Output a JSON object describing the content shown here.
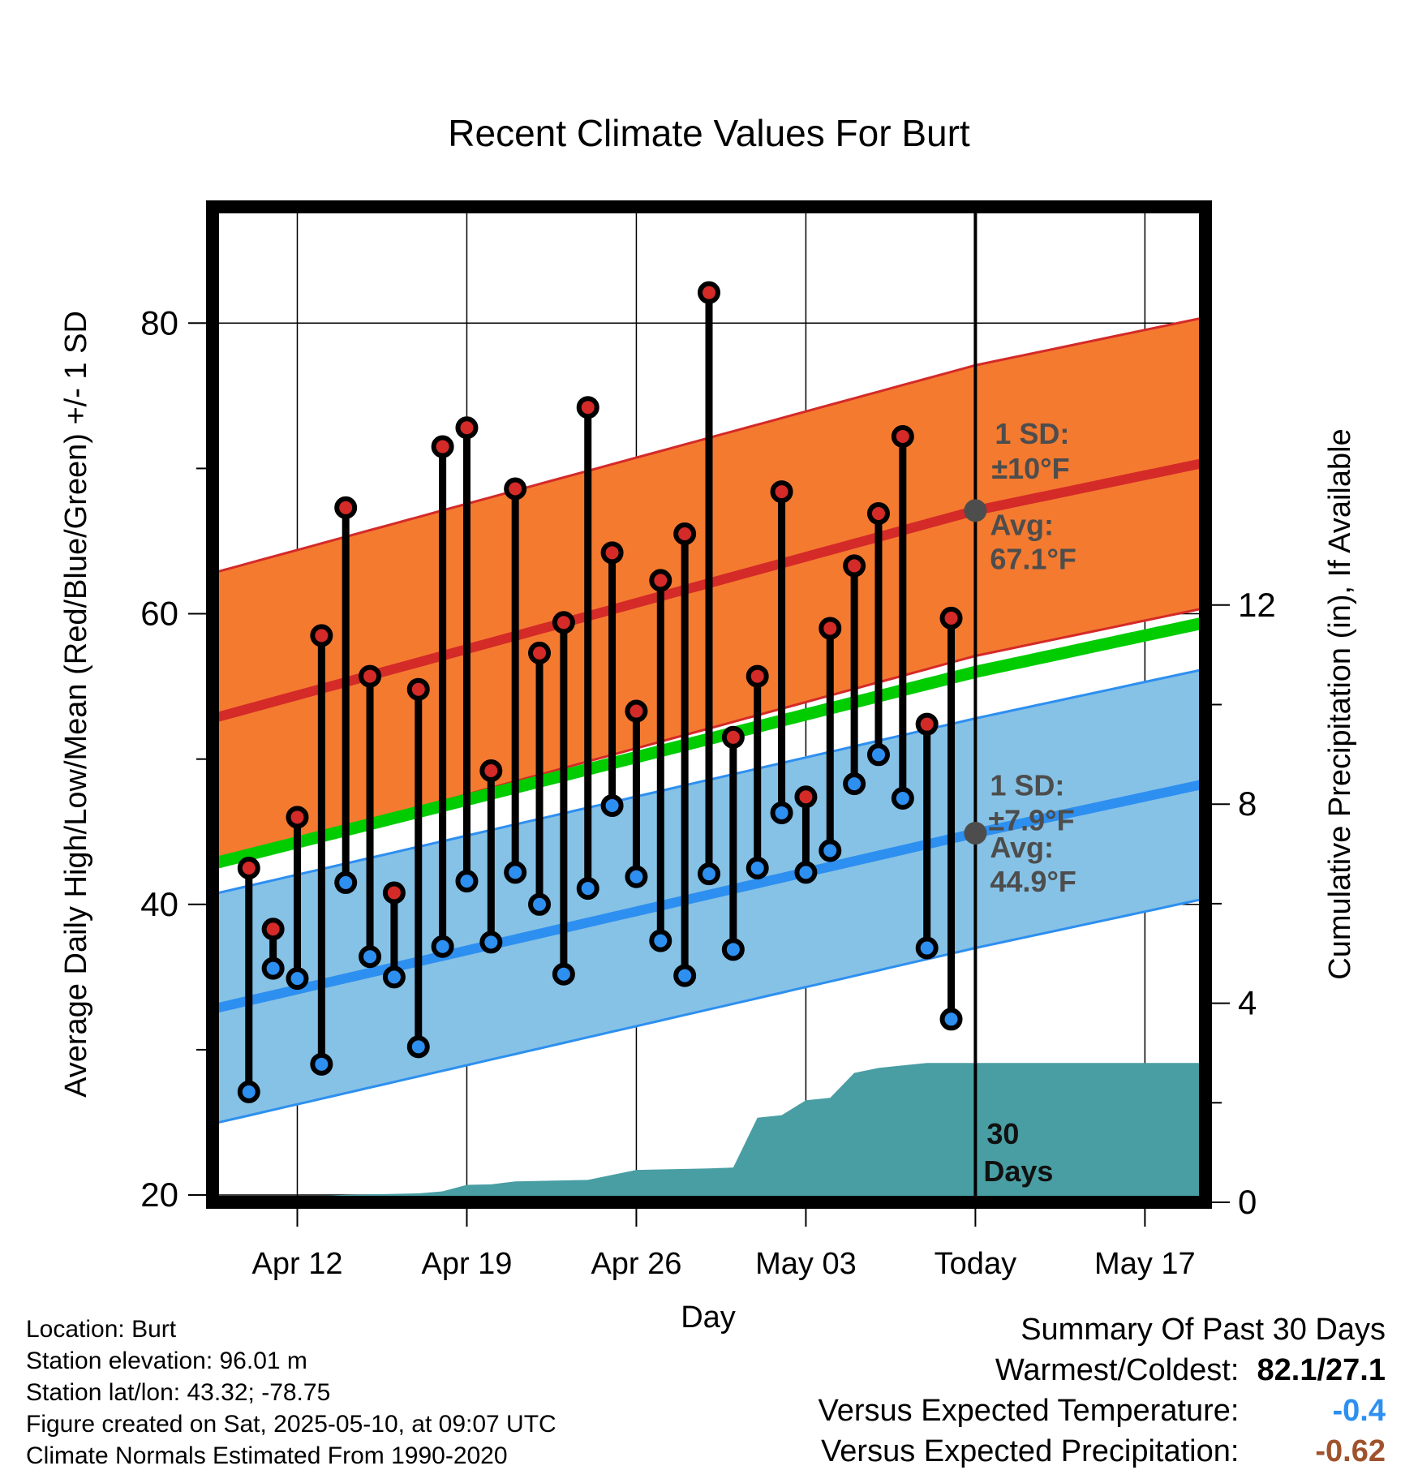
{
  "chart_data": {
    "type": "line",
    "title": "Recent Climate Values For Burt",
    "xlabel": "Day",
    "ylabel": "Average Daily High/Low/Mean (Red/Blue/Green) +/- 1 SD",
    "y2label": "Cumulative Precipitation (in), If Available",
    "ylim": [
      19.5,
      88
    ],
    "y2lim": [
      0,
      20
    ],
    "y_ticks": [
      "20",
      "40",
      "60",
      "80"
    ],
    "y2_ticks": [
      "0",
      "4",
      "8",
      "12"
    ],
    "x_range_days": [
      -31.5,
      9.5
    ],
    "x_ticks": [
      {
        "day": -28,
        "label": "Apr 12"
      },
      {
        "day": -21,
        "label": "Apr 19"
      },
      {
        "day": -14,
        "label": "Apr 26"
      },
      {
        "day": -7,
        "label": "May 03"
      },
      {
        "day": 0,
        "label": "Today"
      },
      {
        "day": 7,
        "label": "May 17"
      }
    ],
    "daily_observations": {
      "day": [
        -30,
        -29,
        -28,
        -27,
        -26,
        -25,
        -24,
        -23,
        -22,
        -21,
        -20,
        -19,
        -18,
        -17,
        -16,
        -15,
        -14,
        -13,
        -12,
        -11,
        -10,
        -9,
        -8,
        -7,
        -6,
        -5,
        -4,
        -3,
        -2,
        -1
      ],
      "high": [
        42.5,
        38.3,
        46.0,
        58.5,
        67.3,
        55.7,
        40.8,
        54.8,
        71.5,
        72.8,
        49.2,
        68.6,
        57.3,
        59.4,
        74.2,
        64.2,
        53.3,
        62.3,
        65.5,
        82.1,
        51.5,
        55.7,
        68.4,
        47.4,
        59.0,
        63.3,
        66.9,
        72.2,
        52.4,
        59.7
      ],
      "low": [
        27.1,
        35.6,
        34.9,
        29.0,
        41.5,
        36.4,
        35.0,
        30.2,
        37.1,
        41.6,
        37.4,
        42.2,
        40.0,
        35.2,
        41.1,
        46.8,
        41.9,
        37.5,
        35.1,
        42.1,
        36.9,
        42.5,
        46.3,
        42.2,
        43.7,
        48.3,
        50.3,
        47.3,
        37.0,
        32.1
      ]
    },
    "normals": {
      "day": [
        -31.5,
        0,
        9.5
      ],
      "avg_high": [
        52.8,
        67.1,
        70.4
      ],
      "avg_high_sd": 10,
      "avg_low": [
        32.8,
        44.9,
        48.3
      ],
      "avg_low_sd": 7.9,
      "avg_mean": [
        42.8,
        56.0,
        59.4
      ]
    },
    "cumulative_precip": {
      "day": [
        -31.5,
        -31,
        -30,
        -29,
        -28,
        -27,
        -26,
        -25,
        -24,
        -23,
        -22,
        -21,
        -20,
        -19,
        -18,
        -17,
        -16,
        -15,
        -14,
        -13,
        -12,
        -11,
        -10,
        -9,
        -8,
        -7,
        -6,
        -5,
        -4,
        -3,
        -2,
        -1,
        0,
        9.5
      ],
      "inches": [
        0.05,
        0.05,
        0.06,
        0.08,
        0.1,
        0.13,
        0.15,
        0.16,
        0.17,
        0.18,
        0.22,
        0.35,
        0.36,
        0.42,
        0.43,
        0.44,
        0.45,
        0.55,
        0.65,
        0.66,
        0.67,
        0.68,
        0.7,
        1.7,
        1.75,
        2.05,
        2.1,
        2.6,
        2.7,
        2.75,
        2.8,
        2.8,
        2.8,
        2.8
      ]
    },
    "annotations": {
      "high_sd": "1 SD:",
      "high_sd_val": "±10°F",
      "high_avg": "Avg:",
      "high_avg_val": "67.1°F",
      "low_sd": "1 SD:",
      "low_sd_val": "±7.9°F",
      "low_avg": "Avg:",
      "low_avg_val": "44.9°F",
      "days_num": "30",
      "days_word": "Days"
    },
    "colors": {
      "high_band": "#f47a30",
      "high_line": "#d42a28",
      "low_band": "#86c2e6",
      "low_line": "#2d8ff0",
      "mean_line": "#00cc00",
      "precip": "#489ea3",
      "annotation": "#4d4d4d"
    }
  },
  "info": {
    "location": "Location: Burt",
    "elevation": "Station elevation: 96.01 m",
    "latlon": "Station lat/lon: 43.32; -78.75",
    "created": "Figure created on Sat, 2025-05-10, at 09:07 UTC",
    "normals": "Climate Normals Estimated From 1990-2020"
  },
  "summary": {
    "title": "Summary Of Past 30 Days",
    "warm_cold_label": "Warmest/Coldest:",
    "warm_cold_value": "82.1/27.1",
    "temp_label": "Versus Expected Temperature:",
    "temp_value": "-0.4",
    "temp_color": "#2d8ff0",
    "precip_label": "Versus Expected Precipitation:",
    "precip_value": "-0.62",
    "precip_color": "#a0522d"
  }
}
